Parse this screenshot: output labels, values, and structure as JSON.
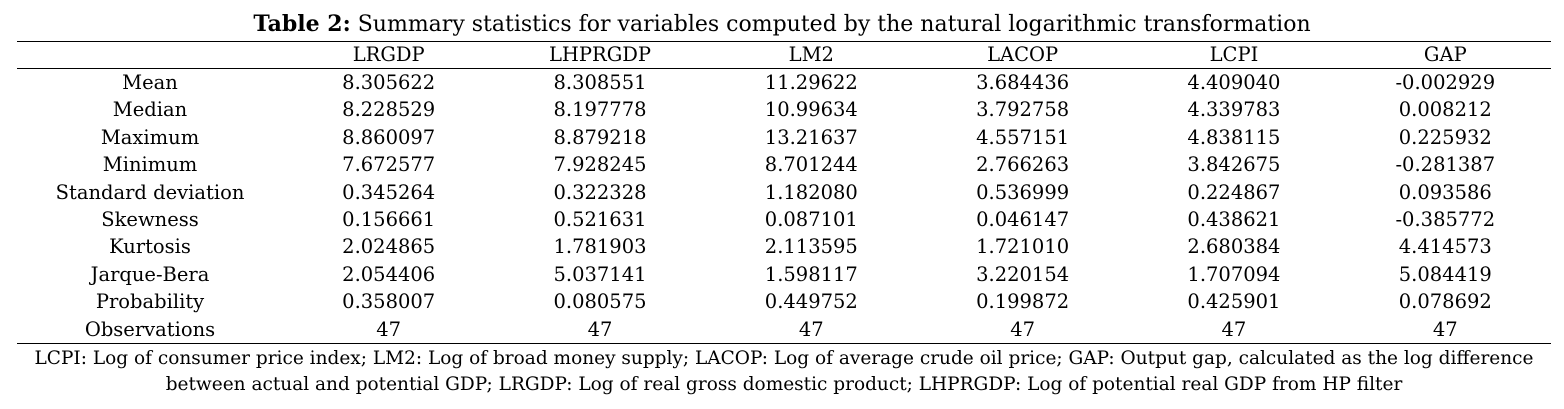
{
  "caption": {
    "label": "Table 2:",
    "text": "Summary statistics for variables computed by the natural logarithmic transformation"
  },
  "table": {
    "columns": [
      "",
      "LRGDP",
      "LHPRGDP",
      "LM2",
      "LACOP",
      "LCPI",
      "GAP"
    ],
    "rows": [
      [
        "Mean",
        "8.305622",
        "8.308551",
        "11.29622",
        "3.684436",
        "4.409040",
        "-0.002929"
      ],
      [
        "Median",
        "8.228529",
        "8.197778",
        "10.99634",
        "3.792758",
        "4.339783",
        "0.008212"
      ],
      [
        "Maximum",
        "8.860097",
        "8.879218",
        "13.21637",
        "4.557151",
        "4.838115",
        "0.225932"
      ],
      [
        "Minimum",
        "7.672577",
        "7.928245",
        "8.701244",
        "2.766263",
        "3.842675",
        "-0.281387"
      ],
      [
        "Standard deviation",
        "0.345264",
        "0.322328",
        "1.182080",
        "0.536999",
        "0.224867",
        "0.093586"
      ],
      [
        "Skewness",
        "0.156661",
        "0.521631",
        "0.087101",
        "0.046147",
        "0.438621",
        "-0.385772"
      ],
      [
        "Kurtosis",
        "2.024865",
        "1.781903",
        "2.113595",
        "1.721010",
        "2.680384",
        "4.414573"
      ],
      [
        "Jarque-Bera",
        "2.054406",
        "5.037141",
        "1.598117",
        "3.220154",
        "1.707094",
        "5.084419"
      ],
      [
        "Probability",
        "0.358007",
        "0.080575",
        "0.449752",
        "0.199872",
        "0.425901",
        "0.078692"
      ],
      [
        "Observations",
        "47",
        "47",
        "47",
        "47",
        "47",
        "47"
      ]
    ]
  },
  "footnote": {
    "line1": "LCPI: Log of consumer price index; LM2: Log of broad money supply; LACOP: Log of average crude oil price; GAP: Output gap, calculated as the log difference",
    "line2": "between actual and potential GDP; LRGDP: Log of real gross domestic product; LHPRGDP: Log of potential real GDP from HP filter"
  }
}
